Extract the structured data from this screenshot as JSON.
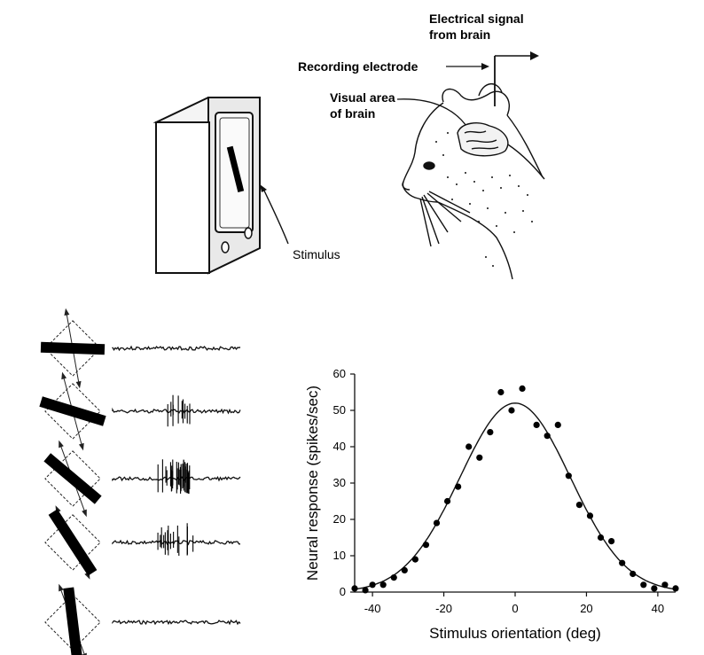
{
  "setup": {
    "labels": {
      "electrical_signal_line1": "Electrical signal",
      "electrical_signal_line2": "from brain",
      "recording_electrode": "Recording electrode",
      "visual_area_line1": "Visual area",
      "visual_area_line2": "of brain",
      "stimulus": "Stimulus"
    }
  },
  "trials": [
    {
      "bar_orientation": "horizontal",
      "response": "none"
    },
    {
      "bar_orientation": "tilted-slight",
      "response": "weak"
    },
    {
      "bar_orientation": "tilted-diagonal",
      "response": "strong"
    },
    {
      "bar_orientation": "tilted-steep",
      "response": "moderate"
    },
    {
      "bar_orientation": "near-vertical",
      "response": "none"
    }
  ],
  "chart_data": {
    "type": "scatter",
    "title": "",
    "xlabel": "Stimulus orientation (deg)",
    "ylabel": "Neural response (spikes/sec)",
    "xlim": [
      -45,
      45
    ],
    "ylim": [
      0,
      60
    ],
    "xticks": [
      -40,
      -20,
      0,
      20,
      40
    ],
    "yticks": [
      0,
      10,
      20,
      30,
      40,
      50,
      60
    ],
    "xtick_labels": [
      "-40",
      "-20",
      "0",
      "20",
      "40"
    ],
    "ytick_labels": [
      "0",
      "10",
      "20",
      "30",
      "40",
      "50",
      "60"
    ],
    "grid": false,
    "series": [
      {
        "kind": "points",
        "x": [
          -45,
          -42,
          -40,
          -37,
          -34,
          -31,
          -28,
          -25,
          -22,
          -19,
          -16,
          -13,
          -10,
          -7,
          -4,
          -1,
          2,
          6,
          9,
          12,
          15,
          18,
          21,
          24,
          27,
          30,
          33,
          36,
          39,
          42,
          45
        ],
        "y": [
          1,
          0.5,
          2,
          2,
          4,
          6,
          9,
          13,
          19,
          25,
          29,
          40,
          37,
          44,
          55,
          50,
          56,
          46,
          43,
          46,
          32,
          24,
          21,
          15,
          14,
          8,
          5,
          2,
          1,
          2,
          1
        ]
      },
      {
        "kind": "gaussian-fit",
        "amplitude": 52,
        "mean": 0,
        "sd": 15.5
      }
    ]
  }
}
